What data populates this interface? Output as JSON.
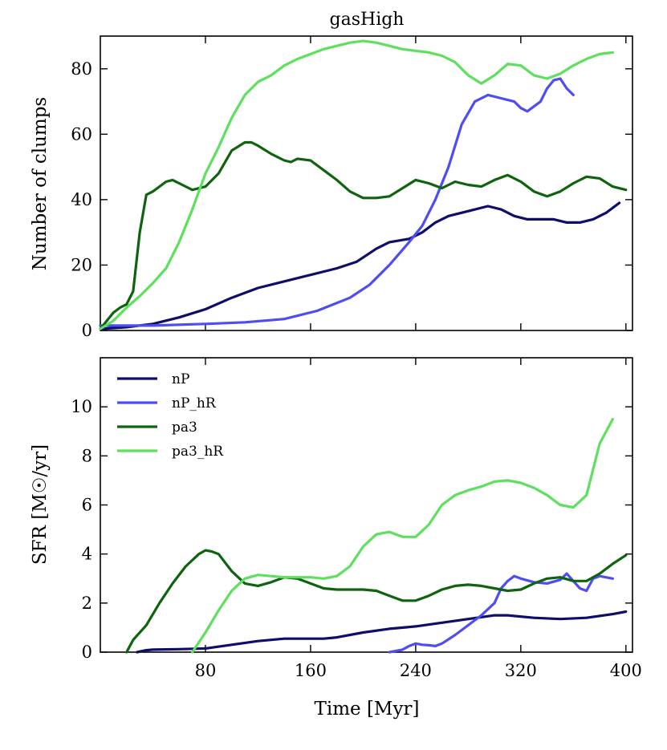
{
  "chart_data": [
    {
      "type": "line",
      "title": "gasHigh",
      "xlabel": "",
      "ylabel": "Number of clumps",
      "xlim": [
        0,
        405
      ],
      "ylim": [
        0,
        90
      ],
      "yticks": [
        0,
        20,
        40,
        60,
        80
      ],
      "series": [
        {
          "name": "nP",
          "color": "#0d0d6b",
          "x": [
            0,
            20,
            40,
            60,
            80,
            100,
            120,
            140,
            160,
            180,
            195,
            210,
            220,
            235,
            245,
            255,
            265,
            280,
            295,
            305,
            315,
            325,
            335,
            345,
            355,
            365,
            375,
            385,
            395
          ],
          "y": [
            0.5,
            1,
            2,
            4,
            6.5,
            10,
            13,
            15,
            17,
            19,
            21,
            25,
            27,
            28,
            30,
            33,
            35,
            36.5,
            38,
            37,
            35,
            34,
            34,
            34,
            33,
            33,
            34,
            36,
            39
          ]
        },
        {
          "name": "nP_hR",
          "color": "#4d4df2",
          "x": [
            0,
            40,
            80,
            110,
            140,
            165,
            190,
            205,
            220,
            235,
            245,
            255,
            265,
            275,
            285,
            295,
            305,
            315,
            320,
            325,
            335,
            340,
            345,
            350,
            355,
            360
          ],
          "y": [
            1.5,
            1.5,
            2,
            2.5,
            3.5,
            6,
            10,
            14,
            20,
            27,
            32,
            40,
            50,
            63,
            70,
            72,
            71,
            70,
            68,
            67,
            70,
            74,
            76.5,
            77,
            74,
            72
          ]
        },
        {
          "name": "pa3",
          "color": "#0e640e",
          "x": [
            0,
            5,
            10,
            15,
            20,
            25,
            30,
            35,
            40,
            45,
            50,
            55,
            60,
            70,
            80,
            90,
            100,
            110,
            115,
            120,
            130,
            140,
            145,
            150,
            160,
            170,
            180,
            190,
            200,
            210,
            220,
            230,
            240,
            250,
            260,
            270,
            280,
            290,
            300,
            310,
            320,
            330,
            340,
            350,
            360,
            370,
            380,
            390,
            400
          ],
          "y": [
            0.5,
            3,
            5.5,
            7,
            8,
            12,
            30,
            41.5,
            42.5,
            44,
            45.5,
            46,
            45,
            43,
            44,
            48,
            55,
            57.5,
            57.5,
            56.5,
            54,
            52,
            51.5,
            52.5,
            52,
            49,
            46,
            42.5,
            40.5,
            40.5,
            41,
            43.5,
            46,
            45,
            43.5,
            45.5,
            44.5,
            44,
            46,
            47.5,
            45.5,
            42.5,
            41,
            42.5,
            45,
            47,
            46.5,
            44,
            43
          ]
        },
        {
          "name": "pa3_hR",
          "color": "#5ee05e",
          "x": [
            0,
            10,
            20,
            30,
            40,
            50,
            60,
            70,
            80,
            90,
            100,
            110,
            120,
            130,
            140,
            150,
            160,
            170,
            180,
            190,
            200,
            210,
            220,
            230,
            240,
            250,
            260,
            270,
            280,
            290,
            300,
            310,
            320,
            330,
            340,
            350,
            360,
            370,
            380,
            390
          ],
          "y": [
            0.5,
            3,
            7,
            10.5,
            14.5,
            19,
            27,
            37,
            48,
            56,
            65,
            72,
            76,
            78,
            81,
            83,
            84.5,
            86,
            87,
            88,
            88.5,
            88,
            87,
            86,
            85.5,
            85,
            84,
            82,
            78,
            75.5,
            78,
            81.5,
            81,
            78,
            77,
            78.5,
            81,
            83,
            84.5,
            85
          ]
        }
      ]
    },
    {
      "type": "line",
      "title": "",
      "xlabel": "Time [Myr]",
      "ylabel": "SFR  [M☉/yr]",
      "xlim": [
        0,
        405
      ],
      "ylim": [
        0,
        12
      ],
      "xticks": [
        80,
        160,
        240,
        320,
        400
      ],
      "yticks": [
        0,
        2,
        4,
        6,
        8,
        10
      ],
      "legend": "top-left",
      "series": [
        {
          "name": "nP",
          "color": "#0d0d6b",
          "x": [
            28,
            35,
            40,
            60,
            80,
            100,
            120,
            140,
            160,
            170,
            180,
            200,
            220,
            240,
            260,
            280,
            300,
            310,
            330,
            350,
            370,
            390,
            400
          ],
          "y": [
            0,
            0.08,
            0.1,
            0.12,
            0.15,
            0.3,
            0.45,
            0.55,
            0.55,
            0.55,
            0.6,
            0.8,
            0.95,
            1.05,
            1.2,
            1.35,
            1.5,
            1.5,
            1.4,
            1.35,
            1.4,
            1.55,
            1.65
          ]
        },
        {
          "name": "nP_hR",
          "color": "#4d4df2",
          "x": [
            220,
            230,
            235,
            240,
            245,
            250,
            255,
            260,
            270,
            280,
            290,
            300,
            305,
            310,
            315,
            320,
            330,
            340,
            350,
            355,
            360,
            365,
            370,
            375,
            380,
            390
          ],
          "y": [
            0,
            0.1,
            0.25,
            0.35,
            0.3,
            0.28,
            0.25,
            0.35,
            0.7,
            1.1,
            1.5,
            2.0,
            2.6,
            2.9,
            3.1,
            3.0,
            2.85,
            2.8,
            2.95,
            3.2,
            2.9,
            2.6,
            2.5,
            3.0,
            3.1,
            3.0
          ]
        },
        {
          "name": "pa3",
          "color": "#0e640e",
          "x": [
            20,
            25,
            35,
            45,
            55,
            65,
            75,
            80,
            85,
            90,
            100,
            110,
            120,
            130,
            140,
            150,
            160,
            170,
            180,
            190,
            200,
            210,
            220,
            230,
            240,
            250,
            260,
            270,
            280,
            290,
            300,
            310,
            320,
            330,
            340,
            350,
            360,
            370,
            380,
            390,
            400
          ],
          "y": [
            0,
            0.5,
            1.1,
            2.0,
            2.8,
            3.5,
            4.0,
            4.15,
            4.1,
            4.0,
            3.3,
            2.8,
            2.7,
            2.85,
            3.05,
            3.0,
            2.8,
            2.6,
            2.55,
            2.55,
            2.55,
            2.5,
            2.3,
            2.1,
            2.1,
            2.3,
            2.55,
            2.7,
            2.75,
            2.7,
            2.6,
            2.5,
            2.55,
            2.8,
            3.0,
            3.05,
            2.9,
            2.9,
            3.2,
            3.6,
            3.95
          ]
        },
        {
          "name": "pa3_hR",
          "color": "#5ee05e",
          "x": [
            70,
            80,
            90,
            100,
            110,
            120,
            130,
            140,
            150,
            160,
            170,
            180,
            190,
            200,
            210,
            220,
            230,
            240,
            250,
            260,
            270,
            280,
            290,
            300,
            310,
            320,
            330,
            340,
            350,
            360,
            370,
            380,
            390
          ],
          "y": [
            0,
            0.8,
            1.7,
            2.5,
            3.0,
            3.15,
            3.1,
            3.05,
            3.05,
            3.05,
            3.0,
            3.1,
            3.5,
            4.3,
            4.8,
            4.9,
            4.7,
            4.7,
            5.2,
            6.0,
            6.4,
            6.6,
            6.75,
            6.95,
            7.0,
            6.9,
            6.7,
            6.4,
            6.0,
            5.9,
            6.4,
            8.5,
            9.5
          ]
        }
      ]
    }
  ]
}
